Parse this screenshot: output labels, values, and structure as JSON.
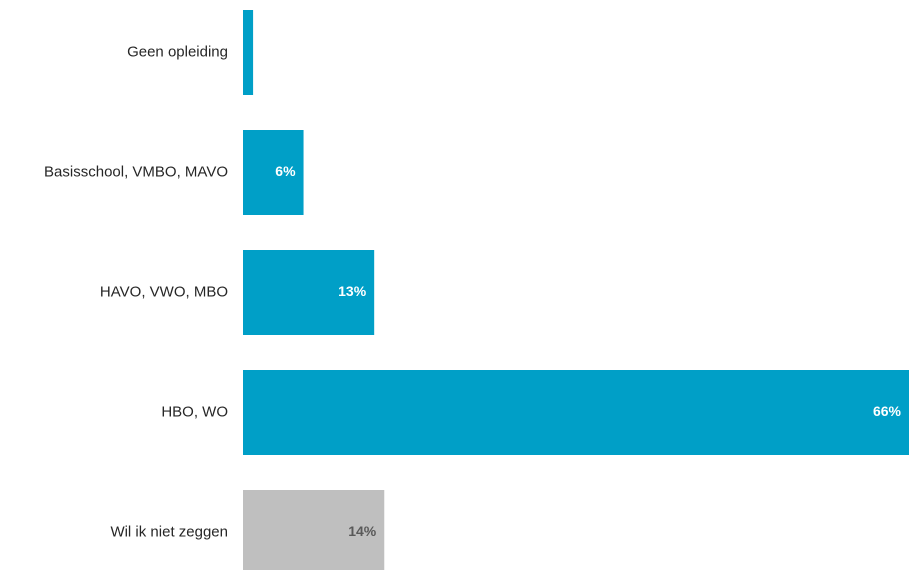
{
  "chart_data": {
    "type": "bar",
    "orientation": "horizontal",
    "categories": [
      "Geen opleiding",
      "Basisschool, VMBO, MAVO",
      "HAVO, VWO, MBO",
      "HBO, WO",
      "Wil ik niet zeggen"
    ],
    "values": [
      1,
      6,
      13,
      66,
      14
    ],
    "data_labels": [
      "",
      "6%",
      "13%",
      "66%",
      "14%"
    ],
    "bar_colors": [
      "#009fc7",
      "#009fc7",
      "#009fc7",
      "#009fc7",
      "#bfbfbf"
    ],
    "label_colors": [
      "#ffffff",
      "#ffffff",
      "#ffffff",
      "#ffffff",
      "#595959"
    ],
    "category_label_color": "#262626",
    "xlim": [
      0,
      66
    ],
    "grid": false,
    "legend": "none"
  }
}
